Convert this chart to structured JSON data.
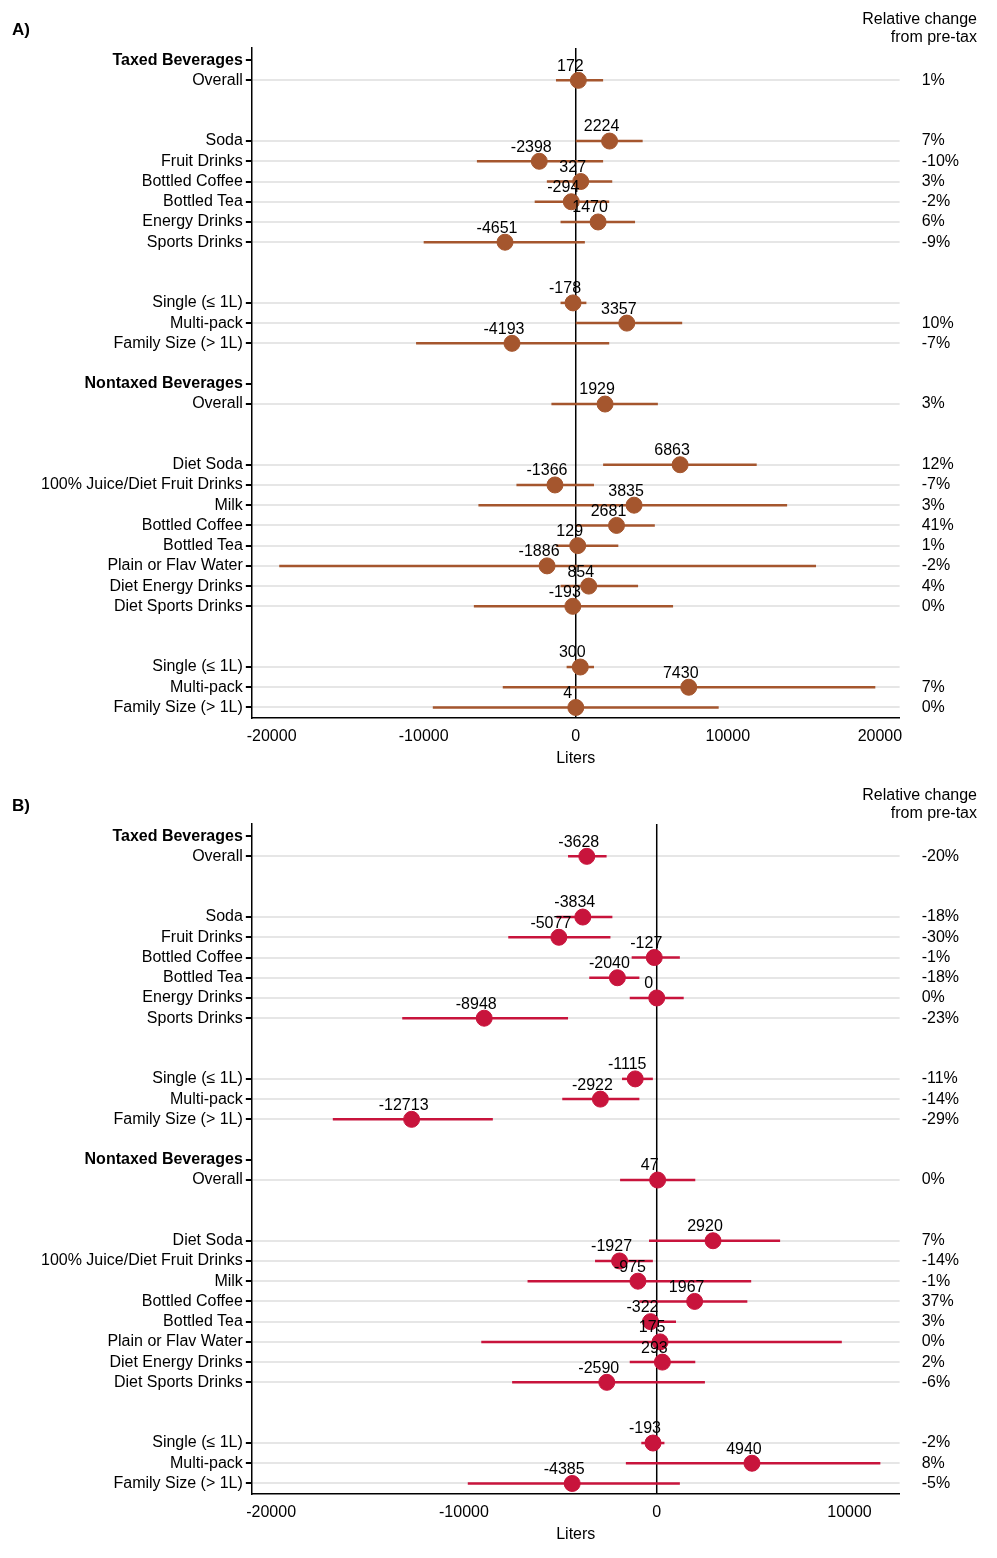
{
  "chart_data": [
    {
      "type": "scatter",
      "orientation": "horizontal",
      "annotations": [
        "A)"
      ],
      "xlabel": "Liters",
      "y2label": "Relative change\nfrom pre-tax",
      "color": "#a5562e",
      "marker": "circle",
      "grid": "y",
      "data_labels": true,
      "xlim": [
        -21300,
        21300
      ],
      "xticks": [
        -20000,
        -10000,
        0,
        10000,
        20000
      ],
      "ref_lines": [
        {
          "axis": "x",
          "value": 0
        }
      ],
      "categories": [
        "Taxed Beverages",
        "Overall",
        null,
        null,
        "Soda",
        "Fruit Drinks",
        "Bottled Coffee",
        "Bottled Tea",
        "Energy Drinks",
        "Sports Drinks",
        null,
        null,
        "Single (≤ 1L)",
        "Multi-pack",
        "Family Size (> 1L)",
        null,
        "Nontaxed Beverages",
        "Overall",
        null,
        null,
        "Diet Soda",
        "100% Juice/Diet Fruit Drinks",
        "Milk",
        "Bottled Coffee",
        "Bottled Tea",
        "Plain or Flav Water",
        "Diet Energy Drinks",
        "Diet Sports Drinks",
        null,
        null,
        "Single (≤ 1L)",
        "Multi-pack",
        "Family Size (> 1L)"
      ],
      "values": [
        null,
        172,
        null,
        null,
        2224,
        -2398,
        327,
        -294,
        1470,
        -4651,
        null,
        null,
        -178,
        3357,
        -4193,
        null,
        null,
        1929,
        null,
        null,
        6863,
        -1366,
        3835,
        2681,
        129,
        -1886,
        854,
        -193,
        null,
        null,
        300,
        7430,
        4
      ],
      "errors": [
        null,
        [
          -1300,
          1800
        ],
        null,
        null,
        [
          0,
          4400
        ],
        [
          -6500,
          1800
        ],
        [
          -1900,
          2400
        ],
        [
          -2700,
          2200
        ],
        [
          -1000,
          3900
        ],
        [
          -10000,
          600
        ],
        null,
        null,
        [
          -1000,
          700
        ],
        [
          0,
          7000
        ],
        [
          -10500,
          2200
        ],
        null,
        null,
        [
          -1600,
          5400
        ],
        null,
        null,
        [
          1800,
          11900
        ],
        [
          -3900,
          1200
        ],
        [
          -6400,
          13900
        ],
        [
          0,
          5200
        ],
        [
          -1300,
          2800
        ],
        [
          -19500,
          15800
        ],
        [
          -1000,
          4100
        ],
        [
          -6700,
          6400
        ],
        null,
        null,
        [
          -600,
          1200
        ],
        [
          -4800,
          19700
        ],
        [
          -9400,
          9400
        ]
      ],
      "y2_categories": [
        null,
        "1%",
        null,
        null,
        "7%",
        "-10%",
        "3%",
        "-2%",
        "6%",
        "-9%",
        null,
        null,
        null,
        "10%",
        "-7%",
        null,
        null,
        "3%",
        null,
        null,
        "12%",
        "-7%",
        "3%",
        "41%",
        "1%",
        "-2%",
        "4%",
        "0%",
        null,
        null,
        null,
        "7%",
        "0%"
      ]
    },
    {
      "type": "scatter",
      "orientation": "horizontal",
      "annotations": [
        "B)"
      ],
      "xlabel": "Liters",
      "y2label": "Relative change\nfrom pre-tax",
      "color": "#c8143c",
      "marker": "circle",
      "grid": "y",
      "data_labels": true,
      "xlim": [
        -21000,
        12600
      ],
      "xticks": [
        -20000,
        -10000,
        0,
        10000
      ],
      "ref_lines": [
        {
          "axis": "x",
          "value": 0
        }
      ],
      "categories": [
        "Taxed Beverages",
        "Overall",
        null,
        null,
        "Soda",
        "Fruit Drinks",
        "Bottled Coffee",
        "Bottled Tea",
        "Energy Drinks",
        "Sports Drinks",
        null,
        null,
        "Single (≤ 1L)",
        "Multi-pack",
        "Family Size (> 1L)",
        null,
        "Nontaxed Beverages",
        "Overall",
        null,
        null,
        "Diet Soda",
        "100% Juice/Diet Fruit Drinks",
        "Milk",
        "Bottled Coffee",
        "Bottled Tea",
        "Plain or Flav Water",
        "Diet Energy Drinks",
        "Diet Sports Drinks",
        null,
        null,
        "Single (≤ 1L)",
        "Multi-pack",
        "Family Size (> 1L)"
      ],
      "values": [
        null,
        -3628,
        null,
        null,
        -3834,
        -5077,
        -127,
        -2040,
        0,
        -8948,
        null,
        null,
        -1115,
        -2922,
        -12713,
        null,
        null,
        47,
        null,
        null,
        2920,
        -1927,
        -975,
        1967,
        -322,
        175,
        293,
        -2590,
        null,
        null,
        -193,
        4940,
        -4385
      ],
      "errors": [
        null,
        [
          -4600,
          -2600
        ],
        null,
        null,
        [
          -5200,
          -2300
        ],
        [
          -7700,
          -2400
        ],
        [
          -1300,
          1200
        ],
        [
          -3500,
          -900
        ],
        [
          -1400,
          1400
        ],
        [
          -13200,
          -4600
        ],
        null,
        null,
        [
          -1800,
          -200
        ],
        [
          -4900,
          -900
        ],
        [
          -16800,
          -8500
        ],
        null,
        null,
        [
          -1900,
          2000
        ],
        null,
        null,
        [
          -400,
          6400
        ],
        [
          -3200,
          -200
        ],
        [
          -6700,
          4900
        ],
        [
          -900,
          4700
        ],
        [
          -700,
          1000
        ],
        [
          -9100,
          9600
        ],
        [
          -1400,
          2000
        ],
        [
          -7500,
          2500
        ],
        null,
        null,
        [
          -800,
          400
        ],
        [
          -1600,
          11600
        ],
        [
          -9800,
          1200
        ]
      ],
      "y2_categories": [
        null,
        "-20%",
        null,
        null,
        "-18%",
        "-30%",
        "-1%",
        "-18%",
        "0%",
        "-23%",
        null,
        null,
        "-11%",
        "-14%",
        "-29%",
        null,
        null,
        "0%",
        null,
        null,
        "7%",
        "-14%",
        "-1%",
        "37%",
        "3%",
        "0%",
        "2%",
        "-6%",
        null,
        null,
        "-2%",
        "8%",
        "-5%"
      ]
    }
  ]
}
